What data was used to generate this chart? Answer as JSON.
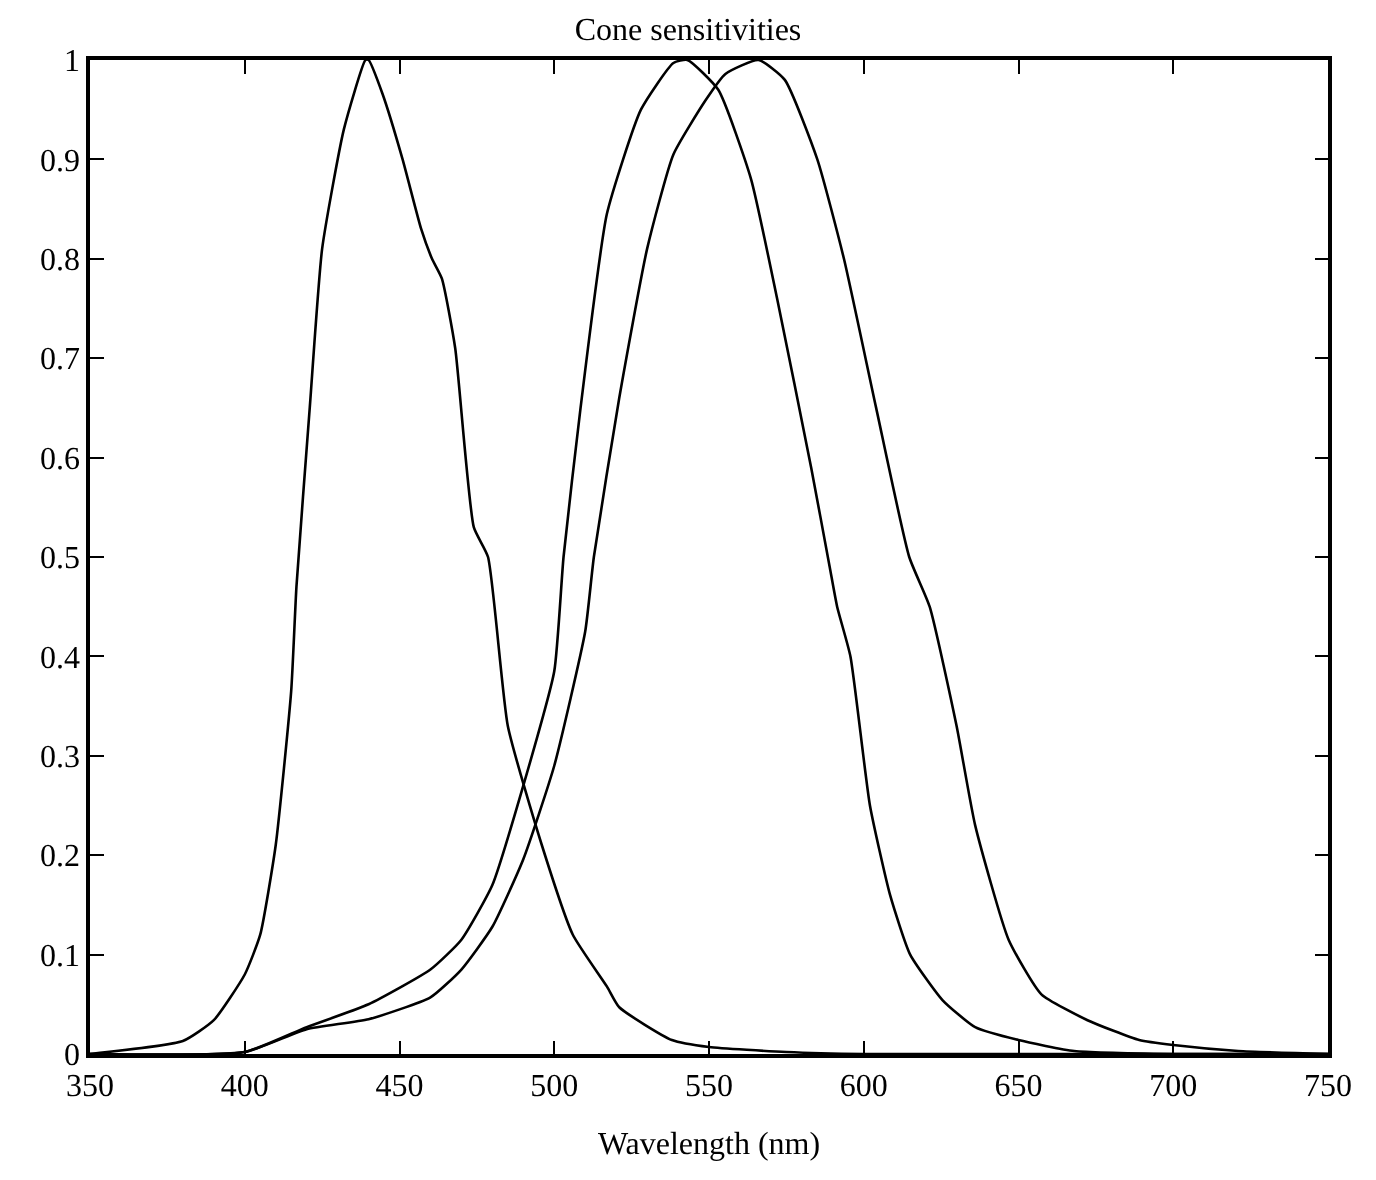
{
  "chart_data": {
    "type": "line",
    "title": "Cone sensitivities",
    "xlabel": "Wavelength (nm)",
    "xlim": [
      350,
      750
    ],
    "xticks": [
      350,
      400,
      450,
      500,
      550,
      600,
      650,
      700,
      750
    ],
    "ylim": [
      0,
      1
    ],
    "yticks": [
      0,
      0.1,
      0.2,
      0.3,
      0.4,
      0.5,
      0.6,
      0.7,
      0.8,
      0.9,
      1
    ],
    "line_style": "solid",
    "series": [
      {
        "color": "#000000",
        "x": [
          350,
          380,
          390,
          400,
          405,
          410,
          415,
          416.7,
          421,
          425,
          432,
          439,
          440,
          444.5,
          451,
          457,
          460.5,
          463.7,
          468,
          474,
          478.6,
          485,
          496,
          506,
          517,
          521,
          538,
          550,
          575,
          600,
          750
        ],
        "values": [
          0,
          0.013,
          0.034,
          0.08,
          0.12,
          0.21,
          0.365,
          0.47,
          0.65,
          0.81,
          0.93,
          1.0,
          1.0,
          0.966,
          0.9,
          0.83,
          0.8,
          0.78,
          0.71,
          0.53,
          0.5,
          0.33,
          0.21,
          0.12,
          0.068,
          0.047,
          0.014,
          0.007,
          0.002,
          0,
          0
        ]
      },
      {
        "color": "#000000",
        "x": [
          350,
          400,
          420,
          440,
          460,
          470,
          480,
          490,
          500,
          503,
          508.5,
          517,
          528,
          538.5,
          543,
          553,
          563.6,
          572,
          583,
          589,
          591.4,
          595.7,
          602,
          608.5,
          615,
          625.5,
          636,
          650,
          668,
          700,
          750
        ],
        "values": [
          0,
          0.002,
          0.027,
          0.05,
          0.085,
          0.115,
          0.17,
          0.27,
          0.385,
          0.5,
          0.65,
          0.845,
          0.95,
          0.997,
          1.0,
          0.97,
          0.88,
          0.76,
          0.59,
          0.49,
          0.45,
          0.4,
          0.25,
          0.16,
          0.1,
          0.054,
          0.027,
          0.014,
          0.003,
          0,
          0
        ]
      },
      {
        "color": "#000000",
        "x": [
          350,
          400,
          420,
          440,
          460,
          470,
          480,
          490,
          500,
          510,
          512.8,
          521,
          530,
          538.5,
          549,
          555.3,
          566,
          574.5,
          585,
          593.6,
          604,
          614.7,
          621.3,
          630,
          636,
          646.8,
          657.4,
          672.3,
          689,
          700,
          721,
          750
        ],
        "values": [
          0,
          0.002,
          0.025,
          0.035,
          0.057,
          0.085,
          0.128,
          0.196,
          0.29,
          0.425,
          0.5,
          0.66,
          0.81,
          0.905,
          0.96,
          0.986,
          1.0,
          0.98,
          0.9,
          0.8,
          0.65,
          0.5,
          0.45,
          0.33,
          0.23,
          0.115,
          0.06,
          0.034,
          0.014,
          0.009,
          0.003,
          0
        ]
      }
    ]
  }
}
